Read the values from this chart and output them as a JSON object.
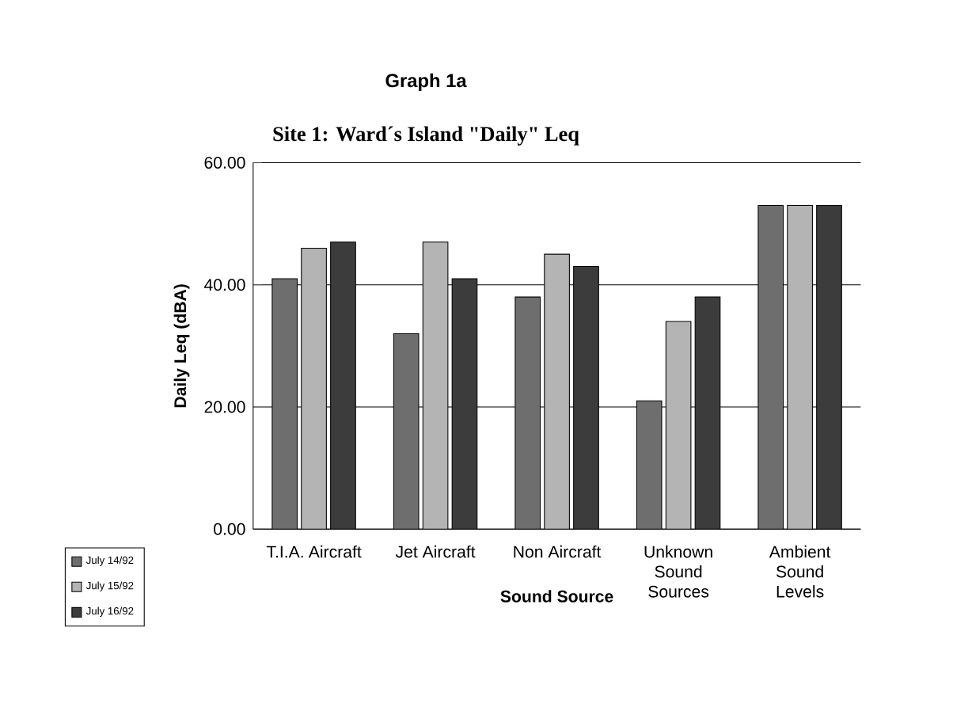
{
  "chart_data": {
    "type": "bar",
    "title": "Graph 1a",
    "subtitle": "Site 1: Ward´s Island \"Daily\" Leq",
    "xlabel": "Sound Source",
    "ylabel": "Daily Leq (dBA)",
    "categories": [
      "T.I.A. Aircraft",
      "Jet Aircraft",
      "Non Aircraft",
      "Unknown Sound Sources",
      "Ambient Sound Levels"
    ],
    "series": [
      {
        "name": "July 14/92",
        "color": "#6e6e6e",
        "values": [
          41,
          32,
          38,
          21,
          53
        ]
      },
      {
        "name": "July 15/92",
        "color": "#b4b4b4",
        "values": [
          46,
          47,
          45,
          34,
          53
        ]
      },
      {
        "name": "July 16/92",
        "color": "#3c3c3c",
        "values": [
          47,
          41,
          43,
          38,
          53
        ]
      }
    ],
    "ylim": [
      0,
      60
    ],
    "yticks": [
      {
        "value": 0,
        "label": "0.00"
      },
      {
        "value": 20,
        "label": "20.00"
      },
      {
        "value": 40,
        "label": "40.00"
      },
      {
        "value": 60,
        "label": "60.00"
      }
    ],
    "grid": "y",
    "legend": "bottom left"
  }
}
